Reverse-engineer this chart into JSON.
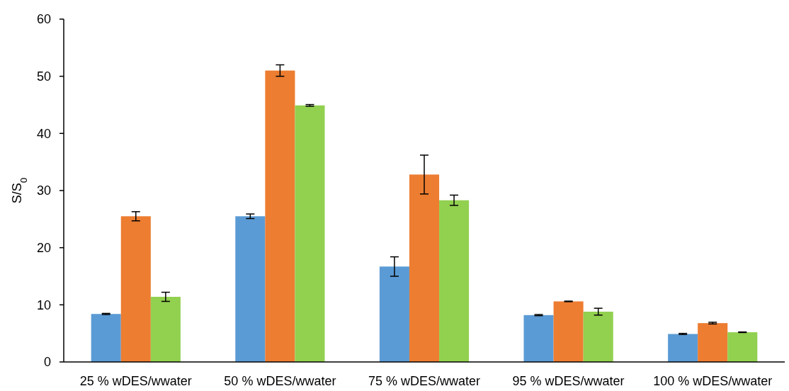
{
  "chart_data": {
    "type": "bar",
    "ylabel": "S/S$_{0}$",
    "categories": [
      "25 % wDES/wwater",
      "50 % wDES/wwater",
      "75 % wDES/wwater",
      "95 % wDES/wwater",
      "100 % wDES/wwater"
    ],
    "series": [
      {
        "color": "#5b9bd5",
        "values": [
          8.4,
          25.5,
          16.7,
          8.2,
          4.9
        ],
        "errors": [
          0.1,
          0.4,
          1.7,
          0.1,
          0.1
        ]
      },
      {
        "color": "#ed7d31",
        "values": [
          25.5,
          51.0,
          32.8,
          10.6,
          6.8
        ],
        "errors": [
          0.8,
          1.0,
          3.4,
          0.05,
          0.15
        ]
      },
      {
        "color": "#92d050",
        "values": [
          11.4,
          44.9,
          28.3,
          8.8,
          5.2
        ],
        "errors": [
          0.8,
          0.15,
          0.9,
          0.6,
          0.05
        ]
      }
    ],
    "ylim": [
      0,
      60
    ],
    "yticks": [
      0,
      10,
      20,
      30,
      40,
      50,
      60
    ],
    "grid": false
  }
}
